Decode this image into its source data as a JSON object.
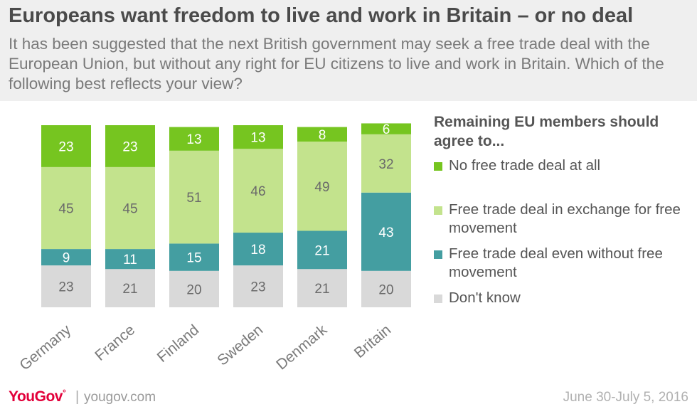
{
  "header": {
    "title": "Europeans want freedom to live and work in Britain – or no deal",
    "subtitle": "It has been suggested that the next British government may seek a free trade deal with the European Union, but without any right for EU citizens to live and work in Britain. Which of the following best reflects your view?"
  },
  "legend": {
    "title": "Remaining EU members should agree to...",
    "items": [
      "No free trade deal at all",
      "Free trade deal in exchange for free movement",
      "Free trade deal even without free movement",
      "Don't know"
    ]
  },
  "footer": {
    "brand": "YouGov",
    "site": "yougov.com",
    "date": "June 30-July 5, 2016"
  },
  "chart_data": {
    "type": "bar",
    "stacked": true,
    "categories": [
      "Germany",
      "France",
      "Finland",
      "Sweden",
      "Denmark",
      "Britain"
    ],
    "series": [
      {
        "name": "Don't know",
        "values": [
          23,
          21,
          20,
          23,
          21,
          20
        ],
        "color": "#d9d9d9",
        "label_color": "#6a6a6a"
      },
      {
        "name": "Free trade deal even without free movement",
        "values": [
          9,
          11,
          15,
          18,
          21,
          43
        ],
        "color": "#449ea1",
        "label_color": "#ffffff"
      },
      {
        "name": "Free trade deal in exchange for free movement",
        "values": [
          45,
          45,
          51,
          46,
          49,
          32
        ],
        "color": "#c3e38d",
        "label_color": "#6a6a6a"
      },
      {
        "name": "No free trade deal at all",
        "values": [
          23,
          23,
          13,
          13,
          8,
          6
        ],
        "color": "#76c520",
        "label_color": "#ffffff"
      }
    ],
    "legend_order": [
      "No free trade deal at all",
      "Free trade deal in exchange for free movement",
      "Free trade deal even without free movement",
      "Don't know"
    ],
    "legend_position": "right",
    "grid": false
  }
}
